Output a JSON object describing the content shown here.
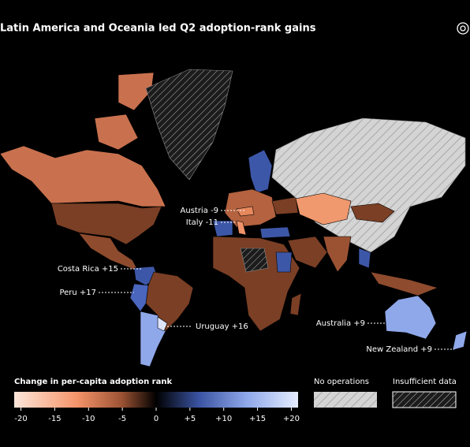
{
  "title": "Latin America and Oceania led Q2 adoption-rank gains",
  "annotations": [
    "Austria -9",
    "Italy -11",
    "Costa Rica +15",
    "Peru +17",
    "Uruguay +16",
    "Australia +9",
    "New Zealand +9"
  ],
  "legend": {
    "title": "Change in per-capita adoption rank",
    "lim": [
      -21,
      21
    ],
    "ticks": [
      -20,
      -15,
      -10,
      -5,
      0,
      {
        "value": 5,
        "label": "+5"
      },
      {
        "value": 10,
        "label": "+10"
      },
      {
        "value": 15,
        "label": "+15"
      },
      {
        "value": 20,
        "label": "+20"
      }
    ],
    "no_operations": "No operations",
    "insufficient_data": "Insufficient data"
  }
}
